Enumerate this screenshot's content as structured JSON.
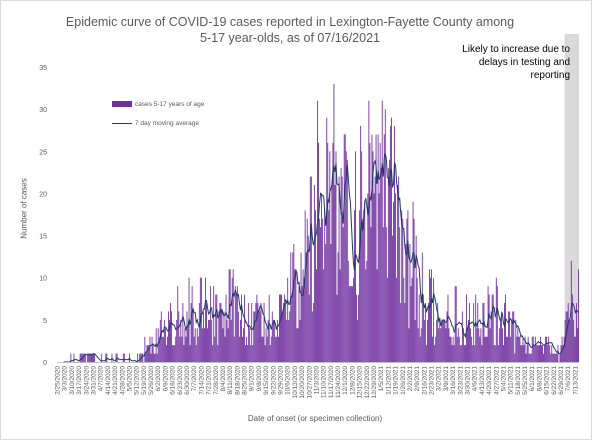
{
  "chart_data": {
    "type": "bar",
    "title": "Epidemic curve of COVID-19 cases reported in Lexington-Fayette County among 5-17 year-olds, as of 07/16/2021",
    "xlabel": "Date of onset (or specimen collection)",
    "ylabel": "Number of cases",
    "ylim": [
      0,
      35
    ],
    "yticks": [
      0,
      5,
      10,
      15,
      20,
      25,
      30,
      35
    ],
    "grid": false,
    "legend_position": "upper-left inside plot",
    "x_tick_labels": [
      "2/25/2020",
      "3/3/2020",
      "3/10/2020",
      "3/17/2020",
      "3/24/2020",
      "3/31/2020",
      "4/7/2020",
      "4/14/2020",
      "4/21/2020",
      "4/28/2020",
      "5/5/2020",
      "5/12/2020",
      "5/19/2020",
      "5/26/2020",
      "6/2/2020",
      "6/9/2020",
      "6/16/2020",
      "6/23/2020",
      "6/30/2020",
      "7/7/2020",
      "7/14/2020",
      "7/21/2020",
      "7/28/2020",
      "8/4/2020",
      "8/11/2020",
      "8/18/2020",
      "8/25/2020",
      "9/1/2020",
      "9/8/2020",
      "9/15/2020",
      "9/22/2020",
      "9/29/2020",
      "10/6/2020",
      "10/13/2020",
      "10/20/2020",
      "10/27/2020",
      "11/3/2020",
      "11/10/2020",
      "11/17/2020",
      "11/24/2020",
      "12/1/2020",
      "12/8/2020",
      "12/15/2020",
      "12/22/2020",
      "12/29/2020",
      "1/5/2021",
      "1/12/2021",
      "1/19/2021",
      "1/26/2021",
      "2/2/2021",
      "2/9/2021",
      "2/16/2021",
      "2/23/2021",
      "3/2/2021",
      "3/9/2021",
      "3/16/2021",
      "3/23/2021",
      "3/30/2021",
      "4/6/2021",
      "4/13/2021",
      "4/20/2021",
      "4/27/2021",
      "5/4/2021",
      "5/11/2021",
      "5/18/2021",
      "5/25/2021",
      "6/1/2021",
      "6/8/2021",
      "6/15/2021",
      "6/22/2021",
      "6/29/2021",
      "7/6/2021",
      "7/13/2021"
    ],
    "first_date": "2/25/2020",
    "last_date": "7/16/2021",
    "series": [
      {
        "name": "cases 5-17 years of age",
        "type": "bar",
        "color": "#7030a0",
        "weekly_profile": [
          0,
          0,
          0.2,
          0.3,
          1,
          0.3,
          0.2,
          0.5,
          0.3,
          0.2,
          0.3,
          0.5,
          1.5,
          2,
          3,
          4,
          5,
          6,
          6,
          7,
          7,
          6,
          5,
          6,
          7,
          7,
          6,
          5,
          5,
          5,
          5,
          6,
          7,
          9,
          11,
          13,
          18,
          21,
          20,
          18,
          16,
          16,
          17,
          18,
          17,
          19,
          20,
          18,
          15,
          12,
          10,
          8,
          7,
          6,
          5,
          5,
          6,
          5,
          5,
          5,
          6,
          6,
          5,
          4,
          3,
          3,
          2,
          2,
          2,
          1,
          1.5,
          6,
          7
        ],
        "peaks": [
          {
            "date": "11/20/2020",
            "value": 33
          },
          {
            "date": "11/13/2020",
            "value": 29
          },
          {
            "date": "12/24/2020",
            "value": 31
          },
          {
            "date": "1/15/2021",
            "value": 29
          },
          {
            "date": "7/9/2021",
            "value": 12
          }
        ]
      },
      {
        "name": "7 day moving average",
        "type": "line",
        "color": "#1f3864"
      }
    ],
    "annotation": {
      "text": "Likely to increase due to delays in testing and reporting",
      "region": [
        "7/3/2021",
        "7/16/2021"
      ],
      "color": "#d9d9d9"
    }
  }
}
